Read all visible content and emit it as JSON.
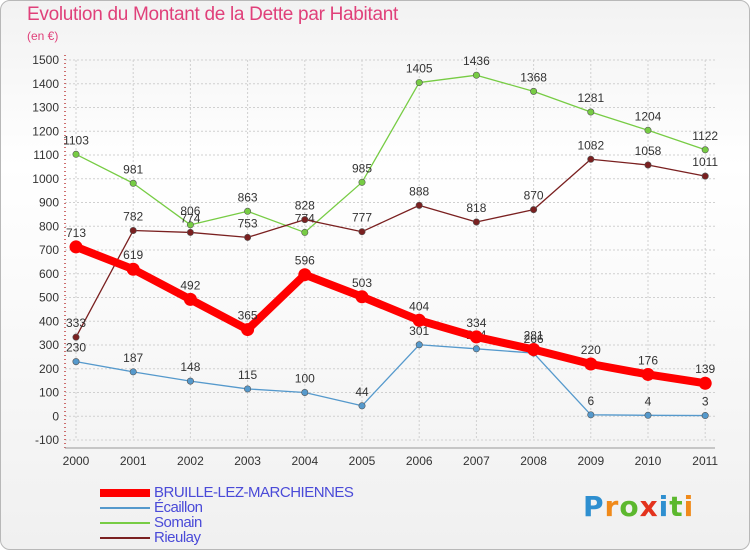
{
  "header": {
    "title": "Evolution du Montant de la Dette par Habitant",
    "unit": "(en €)"
  },
  "logo": {
    "letters": [
      "P",
      "r",
      "o",
      "x",
      "i",
      "t",
      "i"
    ],
    "colors": [
      "#2e8fd0",
      "#f08a1a",
      "#5cb82e",
      "#e3331d",
      "#2e8fd0",
      "#5cb82e",
      "#f08a1a"
    ]
  },
  "chart_data": {
    "type": "line",
    "title": "Evolution du Montant de la Dette par Habitant",
    "ylabel": "(en €)",
    "xlabel": "",
    "ylim": [
      -100,
      1500
    ],
    "yticks": [
      -100,
      0,
      100,
      200,
      300,
      400,
      500,
      600,
      700,
      800,
      900,
      1000,
      1100,
      1200,
      1300,
      1400,
      1500
    ],
    "x": [
      "2000",
      "2001",
      "2002",
      "2003",
      "2004",
      "2005",
      "2006",
      "2007",
      "2008",
      "2009",
      "2010",
      "2011"
    ],
    "grid": true,
    "legend_position": "bottom-left",
    "series": [
      {
        "name": "Somain",
        "color": "#77cc44",
        "values": [
          1103,
          981,
          806,
          863,
          774,
          985,
          1405,
          1436,
          1368,
          1281,
          1204,
          1122
        ],
        "labels": [
          "1103",
          "981",
          "806",
          "863",
          "774",
          "985",
          "1405",
          "1436",
          "1368",
          "1281",
          "1204",
          "1122"
        ]
      },
      {
        "name": "Rieulay",
        "color": "#7a2020",
        "values": [
          333,
          782,
          774,
          753,
          828,
          777,
          888,
          818,
          870,
          1082,
          1058,
          1011
        ],
        "labels": [
          "333",
          "782",
          "774",
          "753",
          "828",
          "777",
          "888",
          "818",
          "870",
          "1082",
          "1058",
          "1011"
        ]
      },
      {
        "name": "Écaillon",
        "color": "#5599cc",
        "values": [
          230,
          187,
          148,
          115,
          100,
          44,
          301,
          284,
          266,
          6,
          4,
          3
        ],
        "labels": [
          "230",
          "187",
          "148",
          "115",
          "100",
          "44",
          "301",
          "284",
          "266",
          "6",
          "4",
          "3"
        ]
      },
      {
        "name": "BRUILLE-LEZ-MARCHIENNES",
        "color": "#ff0000",
        "values": [
          713,
          619,
          492,
          365,
          596,
          503,
          404,
          334,
          281,
          220,
          176,
          139
        ],
        "labels": [
          "713",
          "619",
          "492",
          "365",
          "596",
          "503",
          "404",
          "334",
          "281",
          "220",
          "176",
          "139"
        ]
      }
    ],
    "legend": [
      "BRUILLE-LEZ-MARCHIENNES",
      "Écaillon",
      "Somain",
      "Rieulay"
    ]
  }
}
